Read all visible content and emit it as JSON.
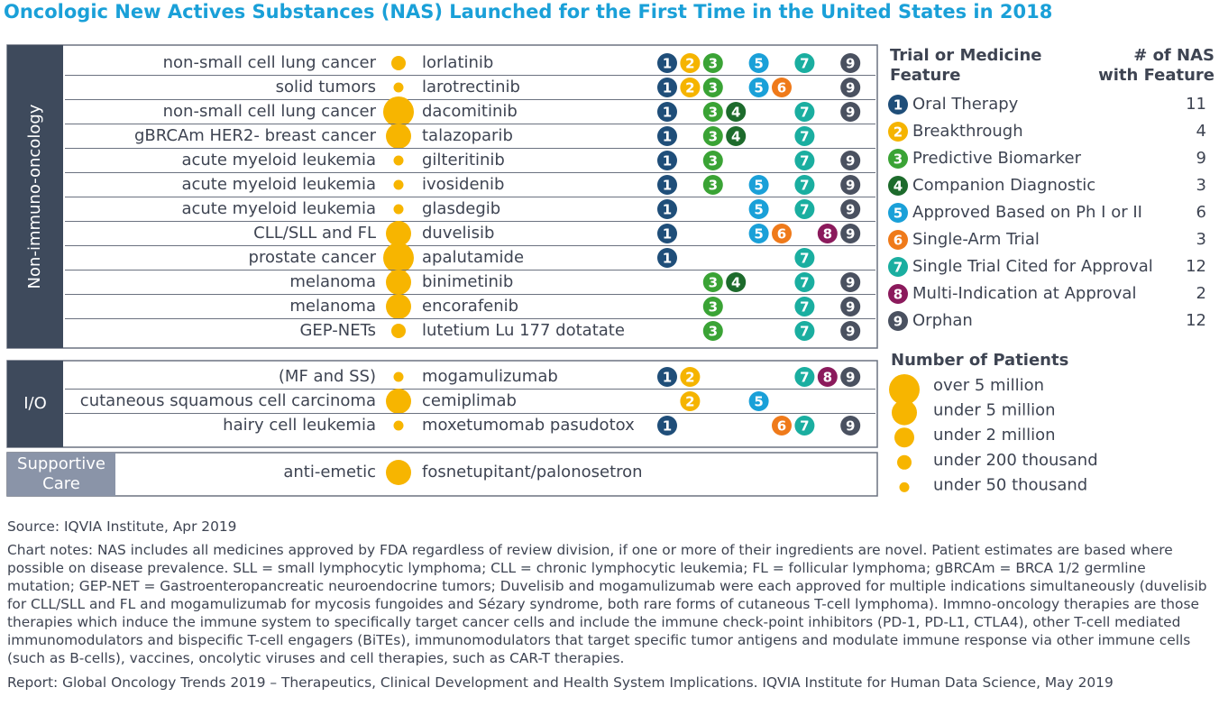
{
  "title": "Oncologic New Actives Substances (NAS) Launched for the First Time in the United States in 2018",
  "groups": [
    {
      "label": [
        "Non-immuno-oncology"
      ],
      "rows": [
        {
          "indication": "non-small cell lung cancer",
          "patients": "under 200 thousand",
          "drug": "lorlatinib",
          "features": [
            1,
            2,
            3,
            5,
            7,
            9
          ]
        },
        {
          "indication": "solid tumors",
          "patients": "under 50 thousand",
          "drug": "larotrectinib",
          "features": [
            1,
            2,
            3,
            5,
            6,
            9
          ]
        },
        {
          "indication": "non-small cell lung cancer",
          "patients": "over 5 million",
          "drug": "dacomitinib",
          "features": [
            1,
            3,
            4,
            7,
            9
          ]
        },
        {
          "indication": "gBRCAm HER2- breast cancer",
          "patients": "under 5 million",
          "drug": "talazoparib",
          "features": [
            1,
            3,
            4,
            7
          ]
        },
        {
          "indication": "acute myeloid leukemia",
          "patients": "under 50 thousand",
          "drug": "gilteritinib",
          "features": [
            1,
            3,
            7,
            9
          ]
        },
        {
          "indication": "acute myeloid leukemia",
          "patients": "under 50 thousand",
          "drug": "ivosidenib",
          "features": [
            1,
            3,
            5,
            7,
            9
          ]
        },
        {
          "indication": "acute myeloid leukemia",
          "patients": "under 50 thousand",
          "drug": "glasdegib",
          "features": [
            1,
            5,
            7,
            9
          ]
        },
        {
          "indication": "CLL/SLL and FL",
          "patients": "under 5 million",
          "drug": "duvelisib",
          "features": [
            1,
            5,
            6,
            8,
            9
          ]
        },
        {
          "indication": "prostate cancer",
          "patients": "over 5 million",
          "drug": "apalutamide",
          "features": [
            1,
            7
          ]
        },
        {
          "indication": "melanoma",
          "patients": "under 5 million",
          "drug": "binimetinib",
          "features": [
            3,
            4,
            7,
            9
          ]
        },
        {
          "indication": "melanoma",
          "patients": "under 5 million",
          "drug": "encorafenib",
          "features": [
            3,
            7,
            9
          ]
        },
        {
          "indication": "GEP-NETs",
          "patients": "under 200 thousand",
          "drug": "lutetium Lu 177 dotatate",
          "features": [
            3,
            7,
            9
          ]
        }
      ]
    },
    {
      "label": [
        "I/O"
      ],
      "rows": [
        {
          "indication": "(MF and SS)",
          "patients": "under 50 thousand",
          "drug": "mogamulizumab",
          "features": [
            1,
            2,
            7,
            8,
            9
          ]
        },
        {
          "indication": "cutaneous squamous cell carcinoma",
          "patients": "under 5 million",
          "drug": "cemiplimab",
          "features": [
            2,
            5
          ]
        },
        {
          "indication": "hairy cell leukemia",
          "patients": "under 50 thousand",
          "drug": "moxetumomab pasudotox",
          "features": [
            1,
            6,
            7,
            9
          ]
        }
      ]
    },
    {
      "label": [
        "Supportive",
        "Care"
      ],
      "rows": [
        {
          "indication": "anti-emetic",
          "patients": "under 5 million",
          "drug": "fosnetupitant/palonosetron",
          "features": []
        }
      ]
    }
  ],
  "feature_legend": {
    "heading": [
      "Trial or Medicine",
      "Feature"
    ],
    "count_heading": [
      "# of NAS",
      "with Feature"
    ],
    "items": [
      {
        "number": 1,
        "label": "Oral Therapy",
        "count": 11,
        "color": "#1f4e79"
      },
      {
        "number": 2,
        "label": "Breakthrough",
        "count": 4,
        "color": "#f5b400"
      },
      {
        "number": 3,
        "label": "Predictive Biomarker",
        "count": 9,
        "color": "#3aa335"
      },
      {
        "number": 4,
        "label": "Companion Diagnostic",
        "count": 3,
        "color": "#1d6b2c"
      },
      {
        "number": 5,
        "label": "Approved Based on Ph I or II",
        "count": 6,
        "color": "#1aa0d8"
      },
      {
        "number": 6,
        "label": "Single-Arm Trial",
        "count": 3,
        "color": "#ef7a1a"
      },
      {
        "number": 7,
        "label": "Single Trial Cited for Approval",
        "count": 12,
        "color": "#1aaea0"
      },
      {
        "number": 8,
        "label": "Multi-Indication at Approval",
        "count": 2,
        "color": "#8b1a5c"
      },
      {
        "number": 9,
        "label": "Orphan",
        "count": 12,
        "color": "#4a5160"
      }
    ]
  },
  "patient_legend": {
    "heading": "Number of Patients",
    "color": "#f7b500",
    "items": [
      "over 5 million",
      "under 5 million",
      "under 2 million",
      "under 200 thousand",
      "under 50 thousand"
    ]
  },
  "source": "Source: IQVIA Institute, Apr 2019",
  "notes": "Chart notes: NAS includes all medicines approved by FDA regardless of review division, if one or more of their ingredients are novel. Patient estimates are based where possible on disease prevalence. SLL = small lymphocytic lymphoma; CLL = chronic lymphocytic leukemia; FL = follicular lymphoma; gBRCAm = BRCA 1/2 germline mutation; GEP-NET = Gastroenteropancreatic neuroendocrine tumors; Duvelisib and mogamulizumab were each approved for multiple indications simultaneously (duvelisib for CLL/SLL and FL and mogamulizumab for mycosis fungoides and Sézary syndrome, both rare forms of cutaneous T-cell lymphoma). Immno-oncology therapies are those therapies which induce the immune system to specifically target cancer cells and include the immune check-point inhibitors (PD-1, PD-L1, CTLA4), other T-cell mediated immunomodulators and bispecific T-cell engagers (BiTEs), immunomodulators that target specific tumor antigens and modulate immune response via other immune cells (such as B-cells), vaccines, oncolytic viruses and cell therapies, such as CAR-T therapies.",
  "report": "Report: Global Oncology Trends 2019 – Therapeutics, Clinical Development and Health System Implications. IQVIA Institute for Human Data Science, May 2019"
}
